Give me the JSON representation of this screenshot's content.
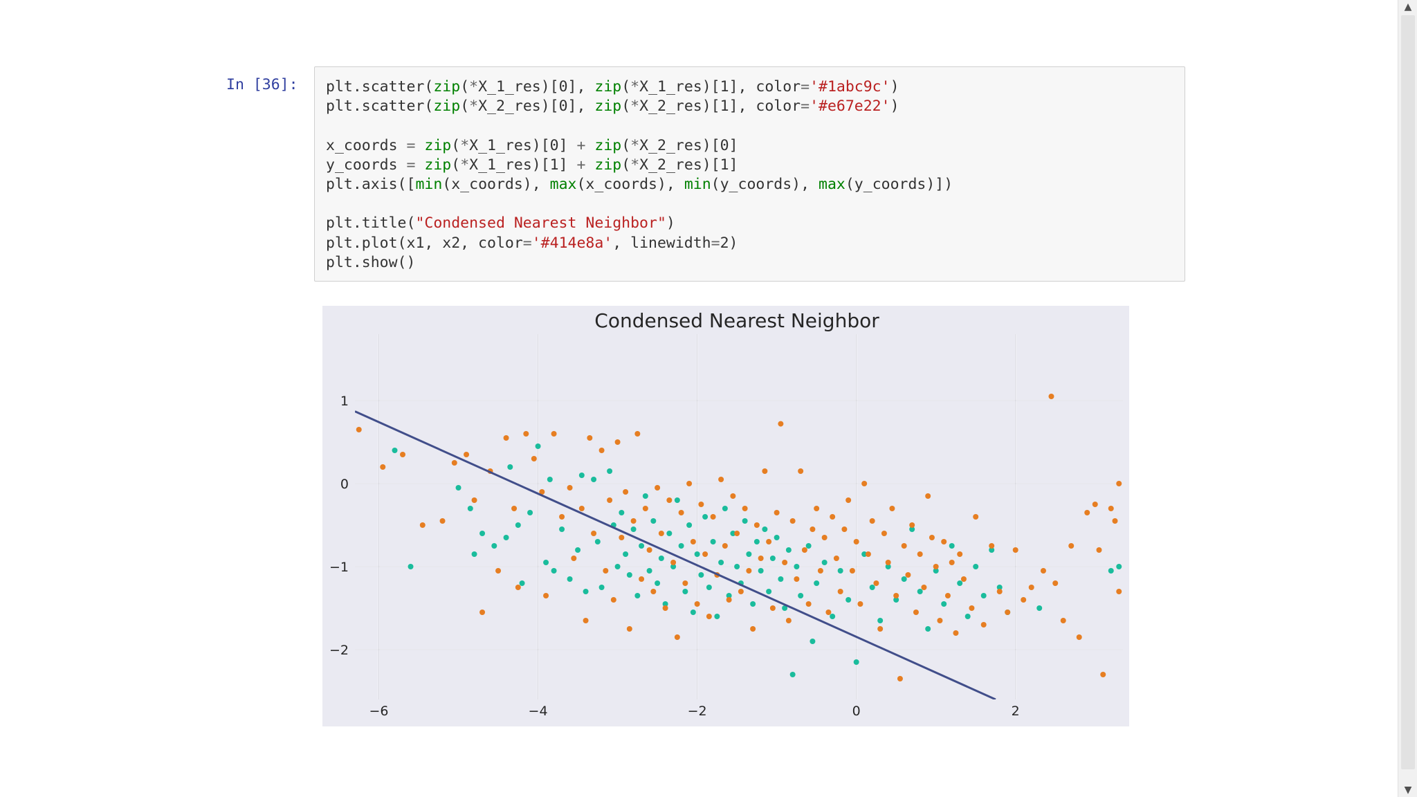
{
  "notebook": {
    "cell_prompt": "In [36]:",
    "code_lines": [
      [
        {
          "t": "plt.scatter("
        },
        {
          "t": "zip",
          "c": "t-builtin"
        },
        {
          "t": "("
        },
        {
          "t": "*",
          "c": "t-op"
        },
        {
          "t": "X_1_res)[0], "
        },
        {
          "t": "zip",
          "c": "t-builtin"
        },
        {
          "t": "("
        },
        {
          "t": "*",
          "c": "t-op"
        },
        {
          "t": "X_1_res)[1], color"
        },
        {
          "t": "=",
          "c": "t-op"
        },
        {
          "t": "'#1abc9c'",
          "c": "t-str"
        },
        {
          "t": ")"
        }
      ],
      [
        {
          "t": "plt.scatter("
        },
        {
          "t": "zip",
          "c": "t-builtin"
        },
        {
          "t": "("
        },
        {
          "t": "*",
          "c": "t-op"
        },
        {
          "t": "X_2_res)[0], "
        },
        {
          "t": "zip",
          "c": "t-builtin"
        },
        {
          "t": "("
        },
        {
          "t": "*",
          "c": "t-op"
        },
        {
          "t": "X_2_res)[1], color"
        },
        {
          "t": "=",
          "c": "t-op"
        },
        {
          "t": "'#e67e22'",
          "c": "t-str"
        },
        {
          "t": ")"
        }
      ],
      [],
      [
        {
          "t": "x_coords "
        },
        {
          "t": "=",
          "c": "t-op"
        },
        {
          "t": " "
        },
        {
          "t": "zip",
          "c": "t-builtin"
        },
        {
          "t": "("
        },
        {
          "t": "*",
          "c": "t-op"
        },
        {
          "t": "X_1_res)[0] "
        },
        {
          "t": "+",
          "c": "t-op"
        },
        {
          "t": " "
        },
        {
          "t": "zip",
          "c": "t-builtin"
        },
        {
          "t": "("
        },
        {
          "t": "*",
          "c": "t-op"
        },
        {
          "t": "X_2_res)[0]"
        }
      ],
      [
        {
          "t": "y_coords "
        },
        {
          "t": "=",
          "c": "t-op"
        },
        {
          "t": " "
        },
        {
          "t": "zip",
          "c": "t-builtin"
        },
        {
          "t": "("
        },
        {
          "t": "*",
          "c": "t-op"
        },
        {
          "t": "X_1_res)[1] "
        },
        {
          "t": "+",
          "c": "t-op"
        },
        {
          "t": " "
        },
        {
          "t": "zip",
          "c": "t-builtin"
        },
        {
          "t": "("
        },
        {
          "t": "*",
          "c": "t-op"
        },
        {
          "t": "X_2_res)[1]"
        }
      ],
      [
        {
          "t": "plt.axis(["
        },
        {
          "t": "min",
          "c": "t-builtin"
        },
        {
          "t": "(x_coords), "
        },
        {
          "t": "max",
          "c": "t-builtin"
        },
        {
          "t": "(x_coords), "
        },
        {
          "t": "min",
          "c": "t-builtin"
        },
        {
          "t": "(y_coords), "
        },
        {
          "t": "max",
          "c": "t-builtin"
        },
        {
          "t": "(y_coords)])"
        }
      ],
      [],
      [
        {
          "t": "plt.title("
        },
        {
          "t": "\"Condensed Nearest Neighbor\"",
          "c": "t-str"
        },
        {
          "t": ")"
        }
      ],
      [
        {
          "t": "plt.plot(x1, x2, color"
        },
        {
          "t": "=",
          "c": "t-op"
        },
        {
          "t": "'#414e8a'",
          "c": "t-str"
        },
        {
          "t": ", linewidth"
        },
        {
          "t": "=",
          "c": "t-op"
        },
        {
          "t": "2"
        },
        {
          "t": ")"
        }
      ],
      [
        {
          "t": "plt.show()"
        }
      ]
    ]
  },
  "scrollbar": {
    "up_icon": "▲",
    "down_icon": "▼"
  },
  "chart_data": {
    "type": "scatter",
    "title": "Condensed Nearest Neighbor",
    "xlabel": "",
    "ylabel": "",
    "xlim": [
      -6.3,
      3.35
    ],
    "ylim": [
      -2.6,
      1.8
    ],
    "x_ticks": [
      -6,
      -4,
      -2,
      0,
      2
    ],
    "x_tick_labels": [
      "−6",
      "−4",
      "−2",
      "0",
      "2"
    ],
    "y_ticks": [
      1,
      0,
      -1,
      -2
    ],
    "y_tick_labels": [
      "1",
      "0",
      "−1",
      "−2"
    ],
    "grid": true,
    "legend": "none",
    "background_color": "#eaeaf2",
    "series": [
      {
        "color": "#1abc9c",
        "values": [
          [
            -5.8,
            0.4
          ],
          [
            -5.6,
            -1.0
          ],
          [
            -5.0,
            -0.05
          ],
          [
            -4.85,
            -0.3
          ],
          [
            -4.8,
            -0.85
          ],
          [
            -4.7,
            -0.6
          ],
          [
            -4.55,
            -0.75
          ],
          [
            -4.4,
            -0.65
          ],
          [
            -4.35,
            0.2
          ],
          [
            -4.25,
            -0.5
          ],
          [
            -4.2,
            -1.2
          ],
          [
            -4.1,
            -0.35
          ],
          [
            -4.0,
            0.45
          ],
          [
            -3.9,
            -0.95
          ],
          [
            -3.85,
            0.05
          ],
          [
            -3.8,
            -1.05
          ],
          [
            -3.7,
            -0.55
          ],
          [
            -3.6,
            -1.15
          ],
          [
            -3.5,
            -0.8
          ],
          [
            -3.45,
            0.1
          ],
          [
            -3.4,
            -1.3
          ],
          [
            -3.3,
            0.05
          ],
          [
            -3.25,
            -0.7
          ],
          [
            -3.2,
            -1.25
          ],
          [
            -3.1,
            0.15
          ],
          [
            -3.05,
            -0.5
          ],
          [
            -3.0,
            -1.0
          ],
          [
            -2.95,
            -0.35
          ],
          [
            -2.9,
            -0.85
          ],
          [
            -2.85,
            -1.1
          ],
          [
            -2.8,
            -0.55
          ],
          [
            -2.75,
            -1.35
          ],
          [
            -2.7,
            -0.75
          ],
          [
            -2.65,
            -0.15
          ],
          [
            -2.6,
            -1.05
          ],
          [
            -2.55,
            -0.45
          ],
          [
            -2.5,
            -1.2
          ],
          [
            -2.45,
            -0.9
          ],
          [
            -2.4,
            -1.45
          ],
          [
            -2.35,
            -0.6
          ],
          [
            -2.3,
            -1.0
          ],
          [
            -2.25,
            -0.2
          ],
          [
            -2.2,
            -0.75
          ],
          [
            -2.15,
            -1.3
          ],
          [
            -2.1,
            -0.5
          ],
          [
            -2.05,
            -1.55
          ],
          [
            -2.0,
            -0.85
          ],
          [
            -1.95,
            -1.1
          ],
          [
            -1.9,
            -0.4
          ],
          [
            -1.85,
            -1.25
          ],
          [
            -1.8,
            -0.7
          ],
          [
            -1.75,
            -1.6
          ],
          [
            -1.7,
            -0.95
          ],
          [
            -1.65,
            -0.3
          ],
          [
            -1.6,
            -1.35
          ],
          [
            -1.55,
            -0.6
          ],
          [
            -1.5,
            -1.0
          ],
          [
            -1.45,
            -1.2
          ],
          [
            -1.4,
            -0.45
          ],
          [
            -1.35,
            -0.85
          ],
          [
            -1.3,
            -1.45
          ],
          [
            -1.25,
            -0.7
          ],
          [
            -1.2,
            -1.05
          ],
          [
            -1.15,
            -0.55
          ],
          [
            -1.1,
            -1.3
          ],
          [
            -1.05,
            -0.9
          ],
          [
            -1.0,
            -0.65
          ],
          [
            -0.95,
            -1.15
          ],
          [
            -0.9,
            -1.5
          ],
          [
            -0.85,
            -0.8
          ],
          [
            -0.8,
            -2.3
          ],
          [
            -0.75,
            -1.0
          ],
          [
            -0.7,
            -1.35
          ],
          [
            -0.6,
            -0.75
          ],
          [
            -0.55,
            -1.9
          ],
          [
            -0.5,
            -1.2
          ],
          [
            -0.4,
            -0.95
          ],
          [
            -0.3,
            -1.6
          ],
          [
            -0.2,
            -1.05
          ],
          [
            -0.1,
            -1.4
          ],
          [
            0.0,
            -2.15
          ],
          [
            0.1,
            -0.85
          ],
          [
            0.2,
            -1.25
          ],
          [
            0.3,
            -1.65
          ],
          [
            0.4,
            -1.0
          ],
          [
            0.5,
            -1.4
          ],
          [
            0.6,
            -1.15
          ],
          [
            0.7,
            -0.55
          ],
          [
            0.8,
            -1.3
          ],
          [
            0.9,
            -1.75
          ],
          [
            1.0,
            -1.05
          ],
          [
            1.1,
            -1.45
          ],
          [
            1.2,
            -0.75
          ],
          [
            1.3,
            -1.2
          ],
          [
            1.4,
            -1.6
          ],
          [
            1.5,
            -1.0
          ],
          [
            1.6,
            -1.35
          ],
          [
            1.7,
            -0.8
          ],
          [
            1.8,
            -1.25
          ],
          [
            1.9,
            -1.55
          ],
          [
            2.3,
            -1.5
          ],
          [
            3.2,
            -1.05
          ],
          [
            3.3,
            -1.0
          ]
        ]
      },
      {
        "color": "#e67e22",
        "values": [
          [
            -6.25,
            0.65
          ],
          [
            -5.95,
            0.2
          ],
          [
            -5.7,
            0.35
          ],
          [
            -5.45,
            -0.5
          ],
          [
            -5.2,
            -0.45
          ],
          [
            -5.05,
            0.25
          ],
          [
            -4.9,
            0.35
          ],
          [
            -4.8,
            -0.2
          ],
          [
            -4.7,
            -1.55
          ],
          [
            -4.6,
            0.15
          ],
          [
            -4.5,
            -1.05
          ],
          [
            -4.4,
            0.55
          ],
          [
            -4.3,
            -0.3
          ],
          [
            -4.25,
            -1.25
          ],
          [
            -4.15,
            0.6
          ],
          [
            -4.05,
            0.3
          ],
          [
            -3.95,
            -0.1
          ],
          [
            -3.9,
            -1.35
          ],
          [
            -3.8,
            0.6
          ],
          [
            -3.7,
            -0.4
          ],
          [
            -3.6,
            -0.05
          ],
          [
            -3.55,
            -0.9
          ],
          [
            -3.45,
            -0.3
          ],
          [
            -3.4,
            -1.65
          ],
          [
            -3.35,
            0.55
          ],
          [
            -3.3,
            -0.6
          ],
          [
            -3.2,
            0.4
          ],
          [
            -3.15,
            -1.05
          ],
          [
            -3.1,
            -0.2
          ],
          [
            -3.05,
            -1.4
          ],
          [
            -3.0,
            0.5
          ],
          [
            -2.95,
            -0.65
          ],
          [
            -2.9,
            -0.1
          ],
          [
            -2.85,
            -1.75
          ],
          [
            -2.8,
            -0.45
          ],
          [
            -2.75,
            0.6
          ],
          [
            -2.7,
            -1.15
          ],
          [
            -2.65,
            -0.3
          ],
          [
            -2.6,
            -0.8
          ],
          [
            -2.55,
            -1.3
          ],
          [
            -2.5,
            -0.05
          ],
          [
            -2.45,
            -0.6
          ],
          [
            -2.4,
            -1.5
          ],
          [
            -2.35,
            -0.2
          ],
          [
            -2.3,
            -0.95
          ],
          [
            -2.25,
            -1.85
          ],
          [
            -2.2,
            -0.35
          ],
          [
            -2.15,
            -1.2
          ],
          [
            -2.1,
            0.0
          ],
          [
            -2.05,
            -0.7
          ],
          [
            -2.0,
            -1.45
          ],
          [
            -1.95,
            -0.25
          ],
          [
            -1.9,
            -0.85
          ],
          [
            -1.85,
            -1.6
          ],
          [
            -1.8,
            -0.4
          ],
          [
            -1.75,
            -1.1
          ],
          [
            -1.7,
            0.05
          ],
          [
            -1.65,
            -0.75
          ],
          [
            -1.6,
            -1.4
          ],
          [
            -1.55,
            -0.15
          ],
          [
            -1.5,
            -0.6
          ],
          [
            -1.45,
            -1.3
          ],
          [
            -1.4,
            -0.3
          ],
          [
            -1.35,
            -1.05
          ],
          [
            -1.3,
            -1.75
          ],
          [
            -1.25,
            -0.5
          ],
          [
            -1.2,
            -0.9
          ],
          [
            -1.15,
            0.15
          ],
          [
            -1.1,
            -0.7
          ],
          [
            -1.05,
            -1.5
          ],
          [
            -1.0,
            -0.35
          ],
          [
            -0.95,
            0.72
          ],
          [
            -0.9,
            -0.95
          ],
          [
            -0.85,
            -1.65
          ],
          [
            -0.8,
            -0.45
          ],
          [
            -0.75,
            -1.15
          ],
          [
            -0.7,
            0.15
          ],
          [
            -0.65,
            -0.8
          ],
          [
            -0.6,
            -1.45
          ],
          [
            -0.55,
            -0.55
          ],
          [
            -0.5,
            -0.3
          ],
          [
            -0.45,
            -1.05
          ],
          [
            -0.4,
            -0.65
          ],
          [
            -0.35,
            -1.55
          ],
          [
            -0.3,
            -0.4
          ],
          [
            -0.25,
            -0.9
          ],
          [
            -0.2,
            -1.3
          ],
          [
            -0.15,
            -0.55
          ],
          [
            -0.1,
            -0.2
          ],
          [
            -0.05,
            -1.05
          ],
          [
            0.0,
            -0.7
          ],
          [
            0.05,
            -1.45
          ],
          [
            0.1,
            0.0
          ],
          [
            0.15,
            -0.85
          ],
          [
            0.2,
            -0.45
          ],
          [
            0.25,
            -1.2
          ],
          [
            0.3,
            -1.75
          ],
          [
            0.35,
            -0.6
          ],
          [
            0.4,
            -0.95
          ],
          [
            0.45,
            -0.3
          ],
          [
            0.5,
            -1.35
          ],
          [
            0.55,
            -2.35
          ],
          [
            0.6,
            -0.75
          ],
          [
            0.65,
            -1.1
          ],
          [
            0.7,
            -0.5
          ],
          [
            0.75,
            -1.55
          ],
          [
            0.8,
            -0.85
          ],
          [
            0.85,
            -1.25
          ],
          [
            0.9,
            -0.15
          ],
          [
            0.95,
            -0.65
          ],
          [
            1.0,
            -1.0
          ],
          [
            1.05,
            -1.65
          ],
          [
            1.1,
            -0.7
          ],
          [
            1.15,
            -1.35
          ],
          [
            1.2,
            -0.95
          ],
          [
            1.25,
            -1.8
          ],
          [
            1.3,
            -0.85
          ],
          [
            1.35,
            -1.15
          ],
          [
            1.45,
            -1.5
          ],
          [
            1.5,
            -0.4
          ],
          [
            1.6,
            -1.7
          ],
          [
            1.7,
            -0.75
          ],
          [
            1.8,
            -1.3
          ],
          [
            1.9,
            -1.55
          ],
          [
            2.0,
            -0.8
          ],
          [
            2.1,
            -1.4
          ],
          [
            2.2,
            -1.25
          ],
          [
            2.35,
            -1.05
          ],
          [
            2.45,
            1.05
          ],
          [
            2.5,
            -1.2
          ],
          [
            2.6,
            -1.65
          ],
          [
            2.7,
            -0.75
          ],
          [
            2.8,
            -1.85
          ],
          [
            2.9,
            -0.35
          ],
          [
            3.0,
            -0.25
          ],
          [
            3.05,
            -0.8
          ],
          [
            3.1,
            -2.3
          ],
          [
            3.2,
            -0.3
          ],
          [
            3.25,
            -0.45
          ],
          [
            3.3,
            0.0
          ],
          [
            3.3,
            -1.3
          ]
        ]
      }
    ],
    "line": {
      "color": "#414e8a",
      "points": [
        [
          -6.3,
          0.87
        ],
        [
          1.75,
          -2.6
        ]
      ]
    }
  }
}
